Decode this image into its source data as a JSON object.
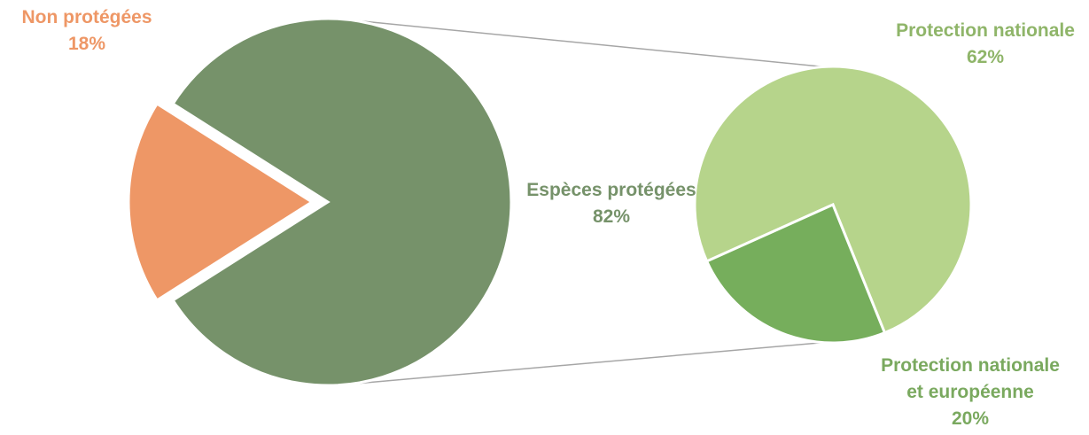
{
  "chart_data": {
    "type": "bar-of-pie",
    "main_pie": {
      "slices": [
        {
          "label": "Espèces protégées",
          "value": 82,
          "value_label": "82%",
          "color": "#76926a",
          "exploded": false
        },
        {
          "label": "Non protégées",
          "value": 18,
          "value_label": "18%",
          "color": "#ee9766",
          "exploded": true
        }
      ]
    },
    "secondary_pie": {
      "breakdown_of": "Espèces protégées",
      "slices": [
        {
          "label": "Protection nationale",
          "value": 62,
          "value_label": "62%",
          "color": "#b6d48b"
        },
        {
          "label_lines": [
            "Protection nationale",
            "et européenne"
          ],
          "value": 20,
          "value_label": "20%",
          "color": "#76ae5c"
        }
      ]
    },
    "label_colors": {
      "Non protégées": "#ee9766",
      "Espèces protégées": "#76926a",
      "Protection nationale": "#8fb569",
      "Protection nationale et européenne": "#7aa95f"
    },
    "connector_color": "#a6a6a6",
    "legend": "none"
  }
}
